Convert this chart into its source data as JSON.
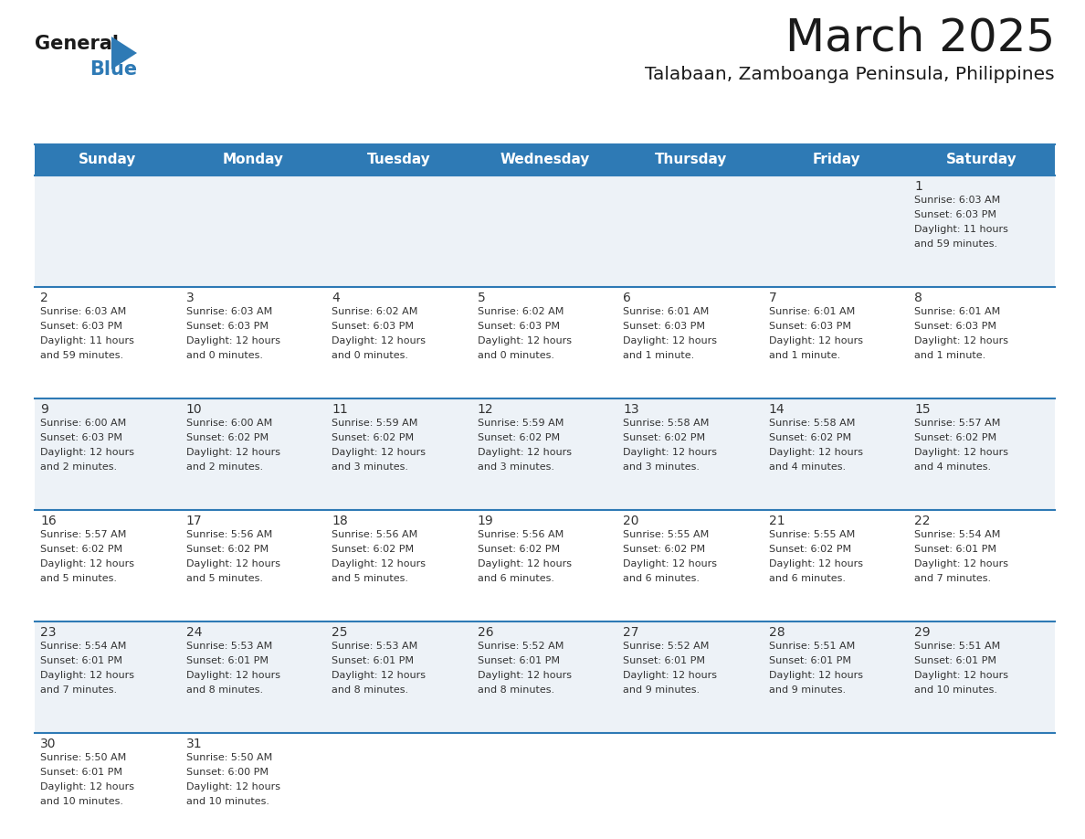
{
  "title": "March 2025",
  "subtitle": "Talabaan, Zamboanga Peninsula, Philippines",
  "header_color": "#2e7ab5",
  "header_text_color": "#ffffff",
  "day_names": [
    "Sunday",
    "Monday",
    "Tuesday",
    "Wednesday",
    "Thursday",
    "Friday",
    "Saturday"
  ],
  "bg_color": "#ffffff",
  "cell_bg_even": "#edf2f7",
  "cell_bg_odd": "#ffffff",
  "border_color": "#2e7ab5",
  "text_color": "#333333",
  "days": [
    {
      "day": 1,
      "col": 6,
      "row": 0,
      "sunrise": "6:03 AM",
      "sunset": "6:03 PM",
      "daylight": "11 hours and 59 minutes."
    },
    {
      "day": 2,
      "col": 0,
      "row": 1,
      "sunrise": "6:03 AM",
      "sunset": "6:03 PM",
      "daylight": "11 hours and 59 minutes."
    },
    {
      "day": 3,
      "col": 1,
      "row": 1,
      "sunrise": "6:03 AM",
      "sunset": "6:03 PM",
      "daylight": "12 hours and 0 minutes."
    },
    {
      "day": 4,
      "col": 2,
      "row": 1,
      "sunrise": "6:02 AM",
      "sunset": "6:03 PM",
      "daylight": "12 hours and 0 minutes."
    },
    {
      "day": 5,
      "col": 3,
      "row": 1,
      "sunrise": "6:02 AM",
      "sunset": "6:03 PM",
      "daylight": "12 hours and 0 minutes."
    },
    {
      "day": 6,
      "col": 4,
      "row": 1,
      "sunrise": "6:01 AM",
      "sunset": "6:03 PM",
      "daylight": "12 hours and 1 minute."
    },
    {
      "day": 7,
      "col": 5,
      "row": 1,
      "sunrise": "6:01 AM",
      "sunset": "6:03 PM",
      "daylight": "12 hours and 1 minute."
    },
    {
      "day": 8,
      "col": 6,
      "row": 1,
      "sunrise": "6:01 AM",
      "sunset": "6:03 PM",
      "daylight": "12 hours and 1 minute."
    },
    {
      "day": 9,
      "col": 0,
      "row": 2,
      "sunrise": "6:00 AM",
      "sunset": "6:03 PM",
      "daylight": "12 hours and 2 minutes."
    },
    {
      "day": 10,
      "col": 1,
      "row": 2,
      "sunrise": "6:00 AM",
      "sunset": "6:02 PM",
      "daylight": "12 hours and 2 minutes."
    },
    {
      "day": 11,
      "col": 2,
      "row": 2,
      "sunrise": "5:59 AM",
      "sunset": "6:02 PM",
      "daylight": "12 hours and 3 minutes."
    },
    {
      "day": 12,
      "col": 3,
      "row": 2,
      "sunrise": "5:59 AM",
      "sunset": "6:02 PM",
      "daylight": "12 hours and 3 minutes."
    },
    {
      "day": 13,
      "col": 4,
      "row": 2,
      "sunrise": "5:58 AM",
      "sunset": "6:02 PM",
      "daylight": "12 hours and 3 minutes."
    },
    {
      "day": 14,
      "col": 5,
      "row": 2,
      "sunrise": "5:58 AM",
      "sunset": "6:02 PM",
      "daylight": "12 hours and 4 minutes."
    },
    {
      "day": 15,
      "col": 6,
      "row": 2,
      "sunrise": "5:57 AM",
      "sunset": "6:02 PM",
      "daylight": "12 hours and 4 minutes."
    },
    {
      "day": 16,
      "col": 0,
      "row": 3,
      "sunrise": "5:57 AM",
      "sunset": "6:02 PM",
      "daylight": "12 hours and 5 minutes."
    },
    {
      "day": 17,
      "col": 1,
      "row": 3,
      "sunrise": "5:56 AM",
      "sunset": "6:02 PM",
      "daylight": "12 hours and 5 minutes."
    },
    {
      "day": 18,
      "col": 2,
      "row": 3,
      "sunrise": "5:56 AM",
      "sunset": "6:02 PM",
      "daylight": "12 hours and 5 minutes."
    },
    {
      "day": 19,
      "col": 3,
      "row": 3,
      "sunrise": "5:56 AM",
      "sunset": "6:02 PM",
      "daylight": "12 hours and 6 minutes."
    },
    {
      "day": 20,
      "col": 4,
      "row": 3,
      "sunrise": "5:55 AM",
      "sunset": "6:02 PM",
      "daylight": "12 hours and 6 minutes."
    },
    {
      "day": 21,
      "col": 5,
      "row": 3,
      "sunrise": "5:55 AM",
      "sunset": "6:02 PM",
      "daylight": "12 hours and 6 minutes."
    },
    {
      "day": 22,
      "col": 6,
      "row": 3,
      "sunrise": "5:54 AM",
      "sunset": "6:01 PM",
      "daylight": "12 hours and 7 minutes."
    },
    {
      "day": 23,
      "col": 0,
      "row": 4,
      "sunrise": "5:54 AM",
      "sunset": "6:01 PM",
      "daylight": "12 hours and 7 minutes."
    },
    {
      "day": 24,
      "col": 1,
      "row": 4,
      "sunrise": "5:53 AM",
      "sunset": "6:01 PM",
      "daylight": "12 hours and 8 minutes."
    },
    {
      "day": 25,
      "col": 2,
      "row": 4,
      "sunrise": "5:53 AM",
      "sunset": "6:01 PM",
      "daylight": "12 hours and 8 minutes."
    },
    {
      "day": 26,
      "col": 3,
      "row": 4,
      "sunrise": "5:52 AM",
      "sunset": "6:01 PM",
      "daylight": "12 hours and 8 minutes."
    },
    {
      "day": 27,
      "col": 4,
      "row": 4,
      "sunrise": "5:52 AM",
      "sunset": "6:01 PM",
      "daylight": "12 hours and 9 minutes."
    },
    {
      "day": 28,
      "col": 5,
      "row": 4,
      "sunrise": "5:51 AM",
      "sunset": "6:01 PM",
      "daylight": "12 hours and 9 minutes."
    },
    {
      "day": 29,
      "col": 6,
      "row": 4,
      "sunrise": "5:51 AM",
      "sunset": "6:01 PM",
      "daylight": "12 hours and 10 minutes."
    },
    {
      "day": 30,
      "col": 0,
      "row": 5,
      "sunrise": "5:50 AM",
      "sunset": "6:01 PM",
      "daylight": "12 hours and 10 minutes."
    },
    {
      "day": 31,
      "col": 1,
      "row": 5,
      "sunrise": "5:50 AM",
      "sunset": "6:00 PM",
      "daylight": "12 hours and 10 minutes."
    }
  ]
}
